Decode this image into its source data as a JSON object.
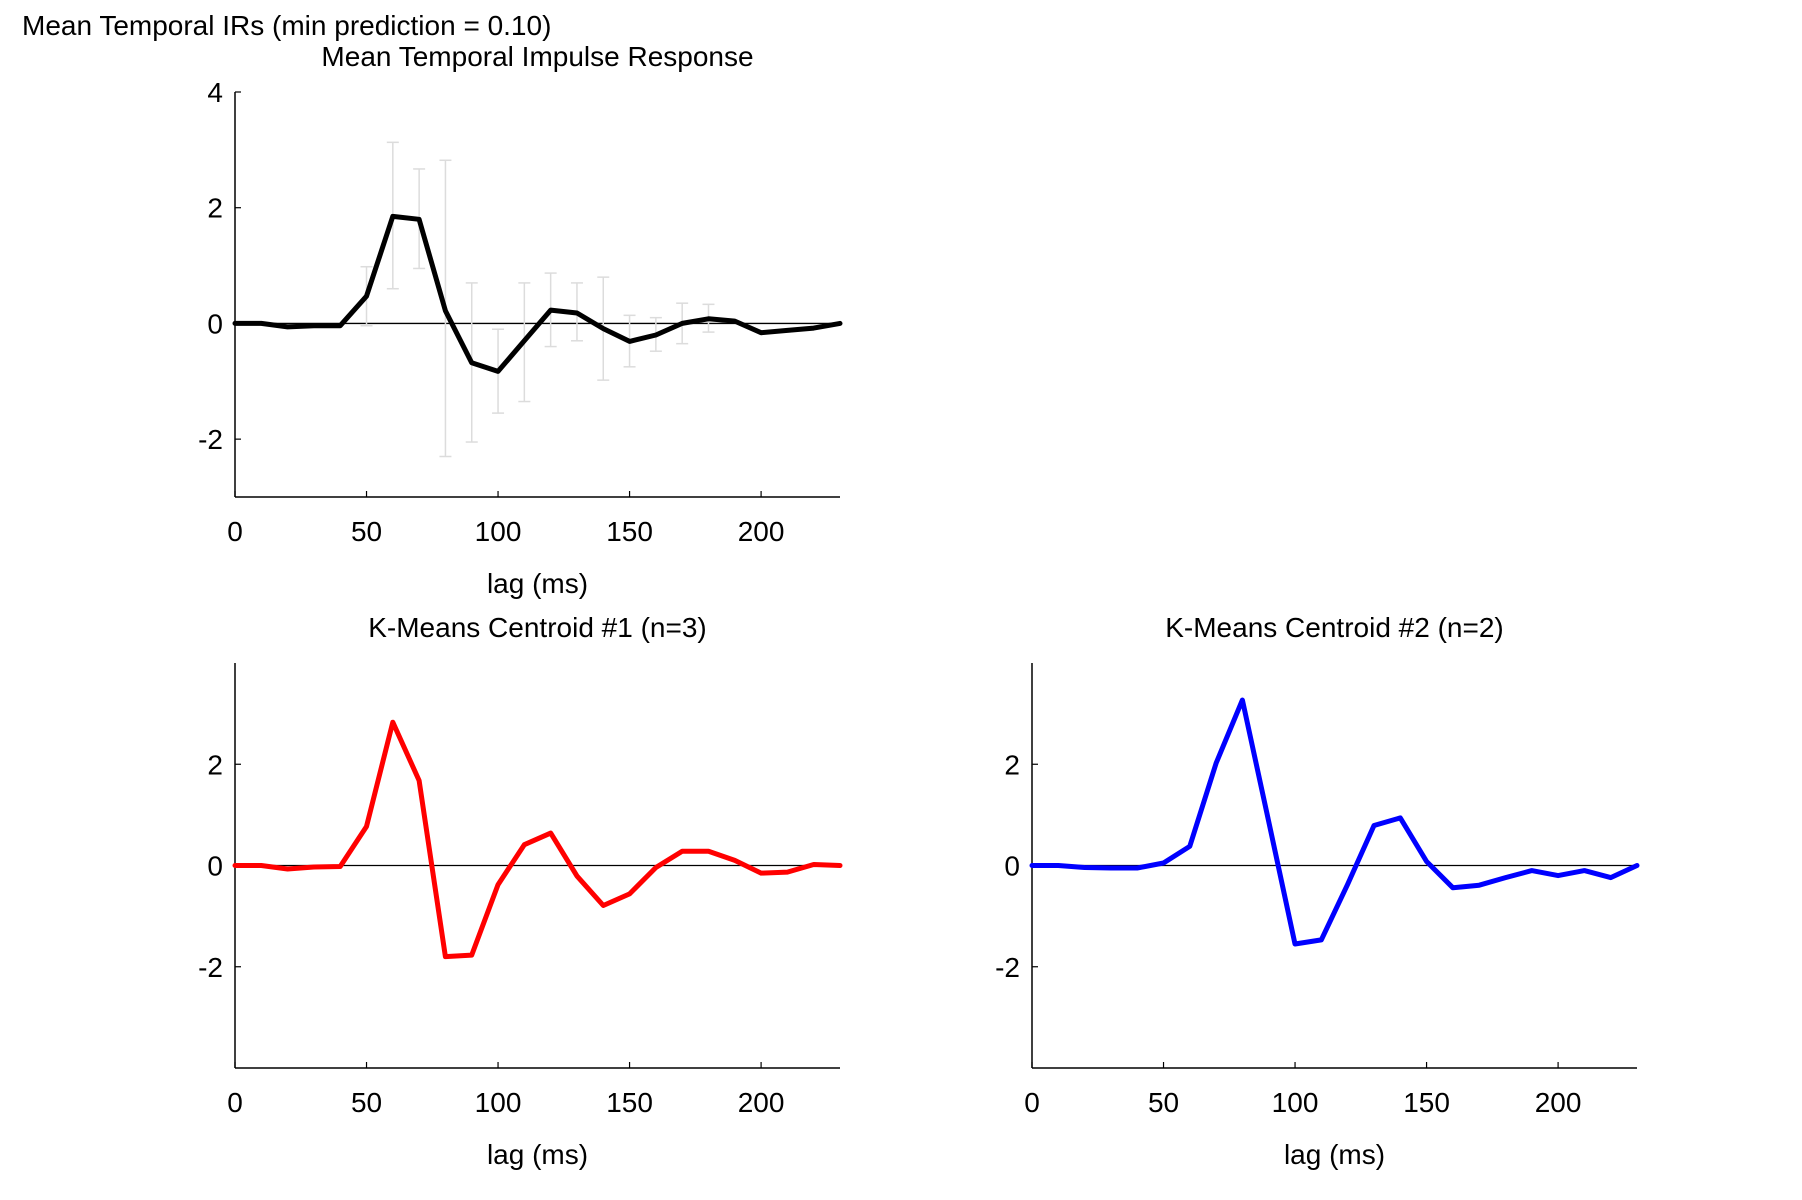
{
  "figure": {
    "title": "Mean Temporal IRs (min prediction = 0.10)"
  },
  "chart_data": [
    {
      "type": "line",
      "title": "Mean Temporal Impulse Response",
      "xlabel": "lag (ms)",
      "ylabel": "",
      "xlim": [
        0,
        230
      ],
      "ylim": [
        -3,
        4
      ],
      "xticks": [
        0,
        50,
        100,
        150,
        200
      ],
      "yticks": [
        -2,
        0,
        2,
        4
      ],
      "zero_line": true,
      "color": "#000000",
      "errorbar_color": "#dcdcdc",
      "x": [
        0,
        10,
        20,
        30,
        40,
        50,
        60,
        70,
        80,
        90,
        100,
        110,
        120,
        130,
        140,
        150,
        160,
        170,
        180,
        190,
        200,
        210,
        220,
        230
      ],
      "y": [
        0.0,
        0.0,
        -0.06,
        -0.04,
        -0.04,
        0.47,
        1.85,
        1.8,
        0.22,
        -0.68,
        -0.83,
        -0.3,
        0.23,
        0.18,
        -0.09,
        -0.31,
        -0.2,
        0.0,
        0.08,
        0.04,
        -0.16,
        -0.12,
        -0.08,
        0.0
      ],
      "error_low": [
        null,
        null,
        null,
        null,
        null,
        -0.04,
        0.6,
        0.95,
        -2.3,
        -2.05,
        -1.55,
        -1.35,
        -0.4,
        -0.3,
        -0.98,
        -0.75,
        -0.48,
        -0.35,
        -0.15,
        null,
        null,
        null,
        null,
        null
      ],
      "error_high": [
        null,
        null,
        null,
        null,
        null,
        0.98,
        3.13,
        2.67,
        2.82,
        0.7,
        -0.1,
        0.7,
        0.87,
        0.7,
        0.8,
        0.14,
        0.1,
        0.35,
        0.33,
        null,
        null,
        null,
        null,
        null
      ]
    },
    {
      "type": "line",
      "title": "K-Means Centroid #1 (n=3)",
      "xlabel": "lag (ms)",
      "ylabel": "",
      "xlim": [
        0,
        230
      ],
      "ylim": [
        -4,
        4
      ],
      "xticks": [
        0,
        50,
        100,
        150,
        200
      ],
      "yticks": [
        -2,
        0,
        2
      ],
      "zero_line": true,
      "color": "#ff0000",
      "x": [
        0,
        10,
        20,
        30,
        40,
        50,
        60,
        70,
        80,
        90,
        100,
        110,
        120,
        130,
        140,
        150,
        160,
        170,
        180,
        190,
        200,
        210,
        220,
        230
      ],
      "y": [
        0.0,
        0.0,
        -0.07,
        -0.03,
        -0.02,
        0.77,
        2.83,
        1.68,
        -1.8,
        -1.77,
        -0.38,
        0.41,
        0.64,
        -0.21,
        -0.79,
        -0.56,
        -0.04,
        0.28,
        0.28,
        0.1,
        -0.15,
        -0.13,
        0.02,
        0.0
      ]
    },
    {
      "type": "line",
      "title": "K-Means Centroid #2 (n=2)",
      "xlabel": "lag (ms)",
      "ylabel": "",
      "xlim": [
        0,
        230
      ],
      "ylim": [
        -4,
        4
      ],
      "xticks": [
        0,
        50,
        100,
        150,
        200
      ],
      "yticks": [
        -2,
        0,
        2
      ],
      "zero_line": true,
      "color": "#0000ff",
      "x": [
        0,
        10,
        20,
        30,
        40,
        50,
        60,
        70,
        80,
        90,
        100,
        110,
        120,
        130,
        140,
        150,
        160,
        170,
        180,
        190,
        200,
        210,
        220,
        230
      ],
      "y": [
        0.0,
        0.0,
        -0.04,
        -0.05,
        -0.05,
        0.05,
        0.38,
        2.02,
        3.27,
        0.87,
        -1.55,
        -1.47,
        -0.37,
        0.79,
        0.94,
        0.08,
        -0.44,
        -0.39,
        -0.24,
        -0.1,
        -0.2,
        -0.1,
        -0.24,
        0.0
      ]
    }
  ]
}
